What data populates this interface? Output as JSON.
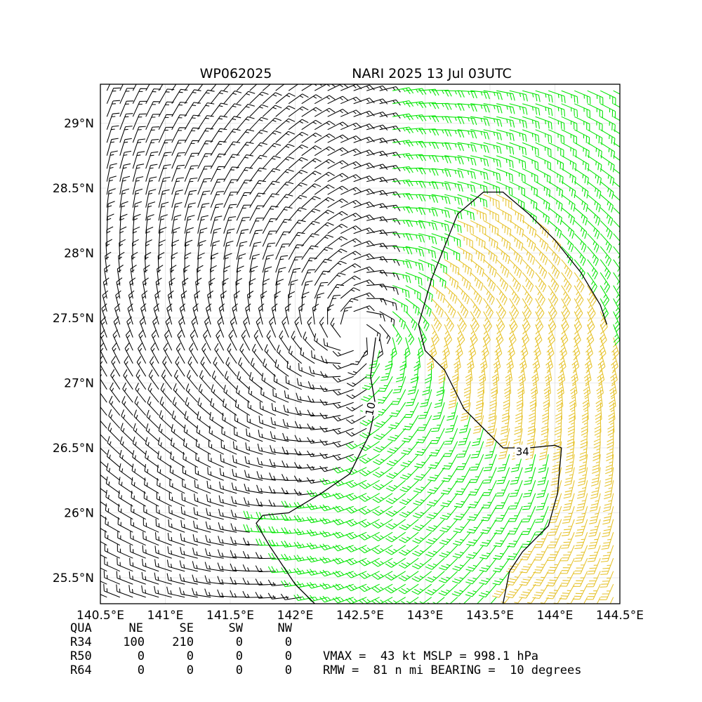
{
  "chart_data": {
    "type": "wind-barb-map",
    "title_left": "WP062025",
    "title_right": "NARI 2025 13 Jul 03UTC",
    "xlim": [
      140.5,
      144.5
    ],
    "ylim": [
      25.3,
      29.3
    ],
    "x_ticks": [
      {
        "value": 140.5,
        "label": "140.5°E"
      },
      {
        "value": 141.0,
        "label": "141°E"
      },
      {
        "value": 141.5,
        "label": "141.5°E"
      },
      {
        "value": 142.0,
        "label": "142°E"
      },
      {
        "value": 142.5,
        "label": "142.5°E"
      },
      {
        "value": 143.0,
        "label": "143°E"
      },
      {
        "value": 143.5,
        "label": "143.5°E"
      },
      {
        "value": 144.0,
        "label": "144°E"
      },
      {
        "value": 144.5,
        "label": "144.5°E"
      }
    ],
    "y_ticks": [
      {
        "value": 25.5,
        "label": "25.5°N"
      },
      {
        "value": 26.0,
        "label": "26°N"
      },
      {
        "value": 26.5,
        "label": "26.5°N"
      },
      {
        "value": 27.0,
        "label": "27°N"
      },
      {
        "value": 27.5,
        "label": "27.5°N"
      },
      {
        "value": 28.0,
        "label": "28°N"
      },
      {
        "value": 28.5,
        "label": "28.5°N"
      },
      {
        "value": 29.0,
        "label": "29°N"
      }
    ],
    "grid": true,
    "storm_center": {
      "lon": 142.45,
      "lat": 27.38
    },
    "rmw_nmi": 81,
    "barb_colors": {
      "below_10kt": "#000000",
      "from_10_to_34kt": "#00e600",
      "above_34kt": "#e6c229"
    },
    "contours": [
      {
        "level": 10,
        "label": "10",
        "label_at": [
          142.58,
          26.8
        ],
        "points": [
          [
            142.62,
            27.35
          ],
          [
            142.58,
            27.05
          ],
          [
            142.62,
            26.82
          ],
          [
            142.57,
            26.6
          ],
          [
            142.42,
            26.3
          ],
          [
            142.2,
            26.15
          ],
          [
            141.95,
            26.0
          ],
          [
            141.75,
            25.98
          ],
          [
            141.7,
            25.92
          ],
          [
            141.8,
            25.75
          ],
          [
            142.0,
            25.45
          ],
          [
            142.15,
            25.3
          ]
        ]
      },
      {
        "level": 34,
        "label": "34",
        "label_at": [
          143.75,
          26.47
        ],
        "points": [
          [
            143.6,
            25.3
          ],
          [
            143.65,
            25.55
          ],
          [
            143.75,
            25.7
          ],
          [
            143.95,
            25.9
          ],
          [
            144.02,
            26.15
          ],
          [
            144.05,
            26.5
          ],
          [
            144.0,
            26.52
          ],
          [
            143.8,
            26.5
          ],
          [
            143.6,
            26.5
          ],
          [
            143.5,
            26.6
          ],
          [
            143.3,
            26.8
          ],
          [
            143.15,
            27.1
          ],
          [
            143.0,
            27.25
          ],
          [
            142.95,
            27.45
          ],
          [
            143.05,
            27.8
          ],
          [
            143.15,
            28.05
          ],
          [
            143.25,
            28.3
          ],
          [
            143.45,
            28.47
          ],
          [
            143.6,
            28.47
          ],
          [
            143.8,
            28.3
          ],
          [
            144.0,
            28.1
          ],
          [
            144.2,
            27.85
          ],
          [
            144.35,
            27.6
          ],
          [
            144.4,
            27.45
          ]
        ]
      }
    ],
    "table": {
      "header": [
        "QUA",
        "NE",
        "SE",
        "SW",
        "NW"
      ],
      "rows": [
        {
          "quadrant": "R34",
          "NE": "100",
          "SE": "210",
          "SW": "0",
          "NW": "0"
        },
        {
          "quadrant": "R50",
          "NE": "0",
          "SE": "0",
          "SW": "0",
          "NW": "0"
        },
        {
          "quadrant": "R64",
          "NE": "0",
          "SE": "0",
          "SW": "0",
          "NW": "0"
        }
      ],
      "summary_line1": "VMAX =  43 kt MSLP = 998.1 hPa",
      "summary_line2": "RMW =  81 n mi BEARING =  10 degrees"
    }
  }
}
